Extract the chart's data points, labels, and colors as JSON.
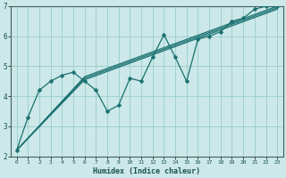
{
  "xlabel": "Humidex (Indice chaleur)",
  "xlim": [
    -0.5,
    23.5
  ],
  "ylim": [
    2,
    7
  ],
  "xticks": [
    0,
    1,
    2,
    3,
    4,
    5,
    6,
    7,
    8,
    9,
    10,
    11,
    12,
    13,
    14,
    15,
    16,
    17,
    18,
    19,
    20,
    21,
    22,
    23
  ],
  "yticks": [
    2,
    3,
    4,
    5,
    6,
    7
  ],
  "bg_color": "#cce8e8",
  "plot_bg": "#cce8e8",
  "line_color": "#1a7070",
  "grid_color": "#99cccc",
  "wiggly": {
    "x": [
      0,
      1,
      2,
      3,
      4,
      5,
      6,
      7,
      8,
      9,
      10,
      11,
      12,
      13,
      14,
      15,
      16,
      17,
      18,
      19,
      20,
      21,
      22,
      23
    ],
    "y": [
      2.2,
      3.3,
      4.2,
      4.5,
      4.7,
      4.8,
      4.5,
      4.2,
      3.5,
      3.7,
      4.6,
      4.5,
      5.3,
      6.05,
      5.3,
      4.5,
      5.9,
      6.0,
      6.15,
      6.5,
      6.6,
      6.9,
      7.0,
      7.0
    ]
  },
  "trend_lines": [
    {
      "x": [
        0,
        6,
        23
      ],
      "y": [
        2.2,
        4.65,
        7.0
      ]
    },
    {
      "x": [
        0,
        6,
        23
      ],
      "y": [
        2.2,
        4.6,
        6.95
      ]
    },
    {
      "x": [
        0,
        6,
        23
      ],
      "y": [
        2.2,
        4.55,
        6.9
      ]
    }
  ]
}
